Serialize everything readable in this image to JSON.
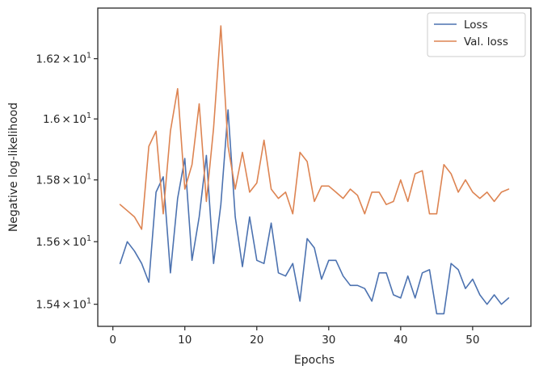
{
  "chart_data": {
    "type": "line",
    "xlabel": "Epochs",
    "ylabel": "Negative log-likelihood",
    "xlim": [
      -2.1,
      58.1
    ],
    "ylim": [
      15.33,
      16.37
    ],
    "y_scale": "log",
    "grid": false,
    "legend_position": "top-right",
    "x_ticks": [
      0,
      10,
      20,
      30,
      40,
      50
    ],
    "x_tick_labels": [
      "0",
      "10",
      "20",
      "30",
      "40",
      "50"
    ],
    "y_ticks": [
      15.4,
      15.6,
      15.8,
      16.0,
      16.2
    ],
    "y_tick_labels": [
      {
        "mantissa": "1.54",
        "times": "×",
        "base": "10",
        "exp": "1"
      },
      {
        "mantissa": "1.56",
        "times": "×",
        "base": "10",
        "exp": "1"
      },
      {
        "mantissa": "1.58",
        "times": "×",
        "base": "10",
        "exp": "1"
      },
      {
        "mantissa": "1.6",
        "times": "×",
        "base": "10",
        "exp": "1"
      },
      {
        "mantissa": "1.62",
        "times": "×",
        "base": "10",
        "exp": "1"
      }
    ],
    "series": [
      {
        "name": "Loss",
        "color": "#4c72b0",
        "x": [
          1,
          2,
          3,
          4,
          5,
          6,
          7,
          8,
          9,
          10,
          11,
          12,
          13,
          14,
          15,
          16,
          17,
          18,
          19,
          20,
          21,
          22,
          23,
          24,
          25,
          26,
          27,
          28,
          29,
          30,
          31,
          32,
          33,
          34,
          35,
          36,
          37,
          38,
          39,
          40,
          41,
          42,
          43,
          44,
          45,
          46,
          47,
          48,
          49,
          50,
          51,
          52,
          53,
          54,
          55
        ],
        "y": [
          15.53,
          15.6,
          15.57,
          15.53,
          15.47,
          15.76,
          15.81,
          15.5,
          15.74,
          15.87,
          15.54,
          15.68,
          15.88,
          15.53,
          15.72,
          16.03,
          15.68,
          15.52,
          15.68,
          15.54,
          15.53,
          15.66,
          15.5,
          15.49,
          15.53,
          15.41,
          15.61,
          15.58,
          15.48,
          15.54,
          15.54,
          15.49,
          15.46,
          15.46,
          15.45,
          15.41,
          15.5,
          15.5,
          15.43,
          15.42,
          15.49,
          15.42,
          15.5,
          15.51,
          15.37,
          15.37,
          15.53,
          15.51,
          15.45,
          15.48,
          15.43,
          15.4,
          15.43,
          15.4,
          15.42
        ]
      },
      {
        "name": "Val. loss",
        "color": "#dd8452",
        "x": [
          1,
          2,
          3,
          4,
          5,
          6,
          7,
          8,
          9,
          10,
          11,
          12,
          13,
          14,
          15,
          16,
          17,
          18,
          19,
          20,
          21,
          22,
          23,
          24,
          25,
          26,
          27,
          28,
          29,
          30,
          31,
          32,
          33,
          34,
          35,
          36,
          37,
          38,
          39,
          40,
          41,
          42,
          43,
          44,
          45,
          46,
          47,
          48,
          49,
          50,
          51,
          52,
          53,
          54,
          55
        ],
        "y": [
          15.72,
          15.7,
          15.68,
          15.64,
          15.91,
          15.96,
          15.69,
          15.96,
          16.1,
          15.77,
          15.85,
          16.05,
          15.73,
          15.97,
          16.31,
          15.91,
          15.77,
          15.89,
          15.76,
          15.79,
          15.93,
          15.77,
          15.74,
          15.76,
          15.69,
          15.89,
          15.86,
          15.73,
          15.78,
          15.78,
          15.76,
          15.74,
          15.77,
          15.75,
          15.69,
          15.76,
          15.76,
          15.72,
          15.73,
          15.8,
          15.73,
          15.82,
          15.83,
          15.69,
          15.69,
          15.85,
          15.82,
          15.76,
          15.8,
          15.76,
          15.74,
          15.76,
          15.73,
          15.76,
          15.77
        ]
      }
    ]
  }
}
